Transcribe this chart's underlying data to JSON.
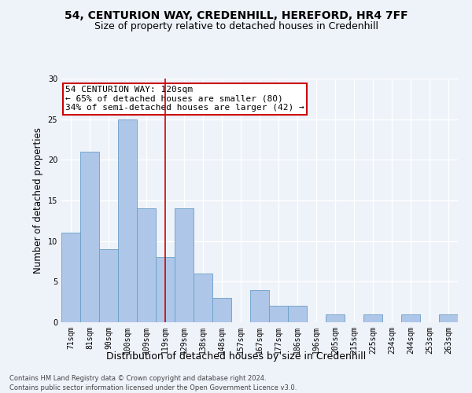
{
  "title1": "54, CENTURION WAY, CREDENHILL, HEREFORD, HR4 7FF",
  "title2": "Size of property relative to detached houses in Credenhill",
  "xlabel": "Distribution of detached houses by size in Credenhill",
  "ylabel": "Number of detached properties",
  "categories": [
    "71sqm",
    "81sqm",
    "90sqm",
    "100sqm",
    "109sqm",
    "119sqm",
    "129sqm",
    "138sqm",
    "148sqm",
    "157sqm",
    "167sqm",
    "177sqm",
    "186sqm",
    "196sqm",
    "205sqm",
    "215sqm",
    "225sqm",
    "234sqm",
    "244sqm",
    "253sqm",
    "263sqm"
  ],
  "values": [
    11,
    21,
    9,
    25,
    14,
    8,
    14,
    6,
    3,
    0,
    4,
    2,
    2,
    0,
    1,
    0,
    1,
    0,
    1,
    0,
    1
  ],
  "bar_color": "#aec6e8",
  "bar_edgecolor": "#6a9fc8",
  "vline_x_index": 5,
  "vline_color": "#cc0000",
  "annotation_line1": "54 CENTURION WAY: 120sqm",
  "annotation_line2": "← 65% of detached houses are smaller (80)",
  "annotation_line3": "34% of semi-detached houses are larger (42) →",
  "annotation_box_color": "#ffffff",
  "annotation_box_edgecolor": "#cc0000",
  "ylim": [
    0,
    30
  ],
  "yticks": [
    0,
    5,
    10,
    15,
    20,
    25,
    30
  ],
  "footer1": "Contains HM Land Registry data © Crown copyright and database right 2024.",
  "footer2": "Contains public sector information licensed under the Open Government Licence v3.0.",
  "bg_color": "#eef2f9",
  "grid_color": "#ffffff",
  "title_fontsize": 10,
  "subtitle_fontsize": 9,
  "ylabel_fontsize": 8.5,
  "xlabel_fontsize": 9,
  "tick_fontsize": 7,
  "footer_fontsize": 6,
  "annotation_fontsize": 8
}
